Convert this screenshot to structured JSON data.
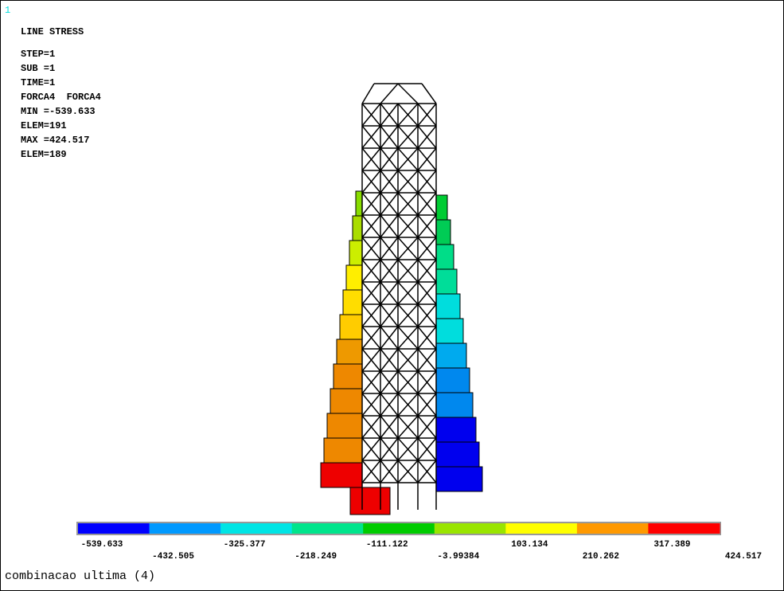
{
  "window_number": "1",
  "plot_title": "LINE STRESS",
  "info_lines": [
    "STEP=1",
    "SUB =1",
    "TIME=1",
    "FORCA4  FORCA4",
    "MIN =-539.633",
    "ELEM=191",
    "MAX =424.517",
    "ELEM=189"
  ],
  "legend": {
    "labels": [
      "-539.633",
      "-432.505",
      "-325.377",
      "-218.249",
      "-111.122",
      "-3.99384",
      "103.134",
      "210.262",
      "317.389",
      "424.517"
    ],
    "colors": [
      "#0000ff",
      "#0099ff",
      "#00e5e5",
      "#00e58c",
      "#00cc00",
      "#99e500",
      "#ffff00",
      "#ff9900",
      "#ff0000"
    ]
  },
  "footer": "combinacao ultima (4)"
}
